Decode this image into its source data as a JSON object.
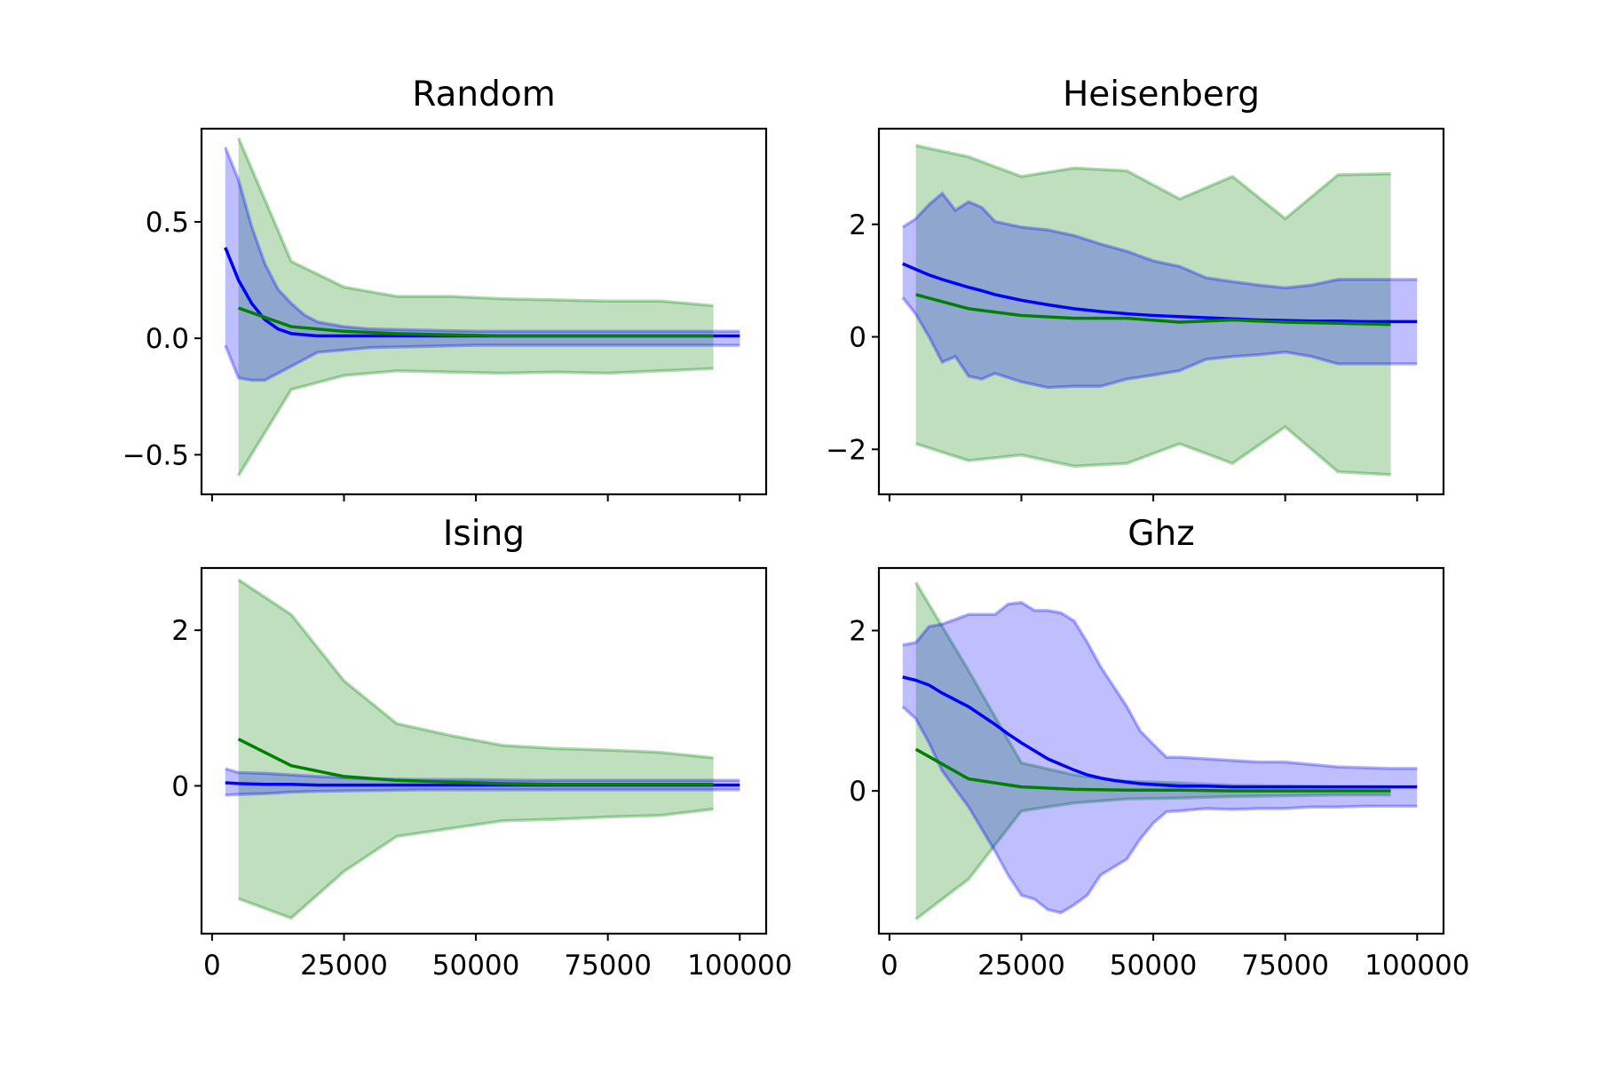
{
  "colors": {
    "blue": "#0000ff",
    "green": "#008000",
    "blue_fill": "#0000ff",
    "green_fill": "#008000"
  },
  "chart_data": [
    {
      "type": "line",
      "title": "Random",
      "xlim": [
        -2000,
        105000
      ],
      "ylim": [
        -0.67,
        0.9
      ],
      "yticks": [
        -0.5,
        0.0,
        0.5
      ],
      "yticklabels": [
        "−0.5",
        "0.0",
        "0.5"
      ],
      "xticks": [
        0,
        25000,
        50000,
        75000,
        100000
      ],
      "xticklabels": [],
      "grid": false,
      "series": [
        {
          "color": "blue",
          "x": [
            2500,
            5000,
            7500,
            10000,
            12500,
            15000,
            17500,
            20000,
            25000,
            30000,
            40000,
            50000,
            60000,
            70000,
            80000,
            90000,
            100000
          ],
          "mean": [
            0.39,
            0.25,
            0.15,
            0.08,
            0.04,
            0.02,
            0.015,
            0.01,
            0.01,
            0.01,
            0.01,
            0.01,
            0.01,
            0.01,
            0.01,
            0.01,
            0.01
          ],
          "upper": [
            0.82,
            0.68,
            0.48,
            0.32,
            0.21,
            0.15,
            0.1,
            0.07,
            0.05,
            0.04,
            0.035,
            0.03,
            0.03,
            0.03,
            0.03,
            0.03,
            0.03
          ],
          "lower": [
            -0.03,
            -0.17,
            -0.18,
            -0.18,
            -0.15,
            -0.12,
            -0.09,
            -0.06,
            -0.05,
            -0.04,
            -0.035,
            -0.03,
            -0.03,
            -0.03,
            -0.03,
            -0.03,
            -0.03
          ]
        },
        {
          "color": "green",
          "x": [
            5000,
            15000,
            25000,
            35000,
            45000,
            55000,
            65000,
            75000,
            85000,
            95000
          ],
          "mean": [
            0.13,
            0.05,
            0.03,
            0.02,
            0.015,
            0.01,
            0.01,
            0.01,
            0.01,
            0.01
          ],
          "upper": [
            0.86,
            0.33,
            0.22,
            0.18,
            0.18,
            0.17,
            0.165,
            0.16,
            0.16,
            0.14
          ],
          "lower": [
            -0.59,
            -0.22,
            -0.16,
            -0.14,
            -0.145,
            -0.15,
            -0.145,
            -0.15,
            -0.14,
            -0.13
          ]
        }
      ]
    },
    {
      "type": "line",
      "title": "Heisenberg",
      "xlim": [
        -2000,
        105000
      ],
      "ylim": [
        -2.8,
        3.7
      ],
      "yticks": [
        -2,
        0,
        2
      ],
      "yticklabels": [
        "−2",
        "0",
        "2"
      ],
      "xticks": [
        0,
        25000,
        50000,
        75000,
        100000
      ],
      "xticklabels": [],
      "grid": false,
      "series": [
        {
          "color": "blue",
          "x": [
            2500,
            5000,
            7500,
            10000,
            12500,
            15000,
            17500,
            20000,
            25000,
            30000,
            35000,
            40000,
            45000,
            50000,
            55000,
            60000,
            65000,
            70000,
            75000,
            80000,
            85000,
            90000,
            95000,
            100000
          ],
          "mean": [
            1.3,
            1.2,
            1.1,
            1.02,
            0.95,
            0.88,
            0.82,
            0.75,
            0.65,
            0.57,
            0.5,
            0.45,
            0.41,
            0.38,
            0.36,
            0.34,
            0.32,
            0.3,
            0.29,
            0.28,
            0.28,
            0.27,
            0.27,
            0.27
          ],
          "upper": [
            1.95,
            2.1,
            2.35,
            2.55,
            2.25,
            2.4,
            2.3,
            2.05,
            1.95,
            1.9,
            1.8,
            1.65,
            1.52,
            1.35,
            1.25,
            1.05,
            0.98,
            0.92,
            0.87,
            0.92,
            1.02,
            1.02,
            1.02,
            1.02
          ],
          "lower": [
            0.7,
            0.4,
            0.0,
            -0.45,
            -0.35,
            -0.7,
            -0.75,
            -0.65,
            -0.8,
            -0.9,
            -0.88,
            -0.88,
            -0.75,
            -0.68,
            -0.6,
            -0.4,
            -0.35,
            -0.32,
            -0.27,
            -0.35,
            -0.48,
            -0.48,
            -0.48,
            -0.48
          ]
        },
        {
          "color": "green",
          "x": [
            5000,
            15000,
            25000,
            35000,
            45000,
            55000,
            65000,
            75000,
            85000,
            95000
          ],
          "mean": [
            0.75,
            0.5,
            0.38,
            0.33,
            0.33,
            0.26,
            0.3,
            0.26,
            0.24,
            0.22
          ],
          "upper": [
            3.4,
            3.2,
            2.85,
            3.0,
            2.95,
            2.45,
            2.85,
            2.1,
            2.88,
            2.9
          ],
          "lower": [
            -1.9,
            -2.2,
            -2.1,
            -2.3,
            -2.25,
            -1.9,
            -2.25,
            -1.6,
            -2.4,
            -2.45
          ]
        }
      ]
    },
    {
      "type": "line",
      "title": "Ising",
      "xlim": [
        -2000,
        105000
      ],
      "ylim": [
        -1.9,
        2.8
      ],
      "yticks": [
        0,
        2
      ],
      "yticklabels": [
        "0",
        "2"
      ],
      "xticks": [
        0,
        25000,
        50000,
        75000,
        100000
      ],
      "xticklabels": [
        "0",
        "25000",
        "50000",
        "75000",
        "100000"
      ],
      "grid": false,
      "series": [
        {
          "color": "blue",
          "x": [
            2500,
            5000,
            10000,
            15000,
            20000,
            30000,
            40000,
            50000,
            60000,
            70000,
            80000,
            90000,
            100000
          ],
          "mean": [
            0.04,
            0.03,
            0.02,
            0.02,
            0.01,
            0.01,
            0.01,
            0.01,
            0.01,
            0.01,
            0.01,
            0.01,
            0.01
          ],
          "upper": [
            0.22,
            0.17,
            0.16,
            0.14,
            0.12,
            0.09,
            0.08,
            0.08,
            0.07,
            0.07,
            0.07,
            0.07,
            0.07
          ],
          "lower": [
            -0.12,
            -0.11,
            -0.1,
            -0.08,
            -0.07,
            -0.06,
            -0.05,
            -0.05,
            -0.05,
            -0.05,
            -0.05,
            -0.05,
            -0.05
          ]
        },
        {
          "color": "green",
          "x": [
            5000,
            15000,
            25000,
            35000,
            45000,
            55000,
            65000,
            75000,
            85000,
            95000
          ],
          "mean": [
            0.6,
            0.26,
            0.12,
            0.07,
            0.05,
            0.03,
            0.02,
            0.02,
            0.02,
            0.02
          ],
          "upper": [
            2.65,
            2.2,
            1.35,
            0.8,
            0.65,
            0.52,
            0.48,
            0.46,
            0.43,
            0.36
          ],
          "lower": [
            -1.45,
            -1.7,
            -1.1,
            -0.65,
            -0.55,
            -0.45,
            -0.43,
            -0.4,
            -0.38,
            -0.3
          ]
        }
      ]
    },
    {
      "type": "line",
      "title": "Ghz",
      "xlim": [
        -2000,
        105000
      ],
      "ylim": [
        -1.78,
        2.78
      ],
      "yticks": [
        0,
        2
      ],
      "yticklabels": [
        "0",
        "2"
      ],
      "xticks": [
        0,
        25000,
        50000,
        75000,
        100000
      ],
      "xticklabels": [
        "0",
        "25000",
        "50000",
        "75000",
        "100000"
      ],
      "grid": false,
      "series": [
        {
          "color": "blue",
          "x": [
            2500,
            5000,
            7500,
            10000,
            15000,
            20000,
            22500,
            25000,
            27500,
            30000,
            32500,
            35000,
            37500,
            40000,
            42500,
            45000,
            47500,
            50000,
            52500,
            55000,
            60000,
            65000,
            70000,
            75000,
            80000,
            85000,
            90000,
            95000,
            100000
          ],
          "mean": [
            1.42,
            1.38,
            1.32,
            1.22,
            1.05,
            0.83,
            0.71,
            0.6,
            0.5,
            0.4,
            0.33,
            0.26,
            0.2,
            0.16,
            0.13,
            0.11,
            0.09,
            0.08,
            0.07,
            0.06,
            0.06,
            0.05,
            0.05,
            0.05,
            0.05,
            0.05,
            0.05,
            0.05,
            0.05
          ],
          "upper": [
            1.82,
            1.85,
            2.05,
            2.08,
            2.2,
            2.2,
            2.33,
            2.35,
            2.25,
            2.25,
            2.22,
            2.12,
            1.85,
            1.55,
            1.3,
            1.05,
            0.75,
            0.58,
            0.42,
            0.42,
            0.4,
            0.38,
            0.36,
            0.36,
            0.33,
            0.3,
            0.29,
            0.28,
            0.28
          ],
          "lower": [
            1.05,
            0.9,
            0.6,
            0.25,
            -0.2,
            -0.75,
            -1.05,
            -1.3,
            -1.35,
            -1.48,
            -1.52,
            -1.42,
            -1.3,
            -1.05,
            -0.95,
            -0.85,
            -0.6,
            -0.4,
            -0.26,
            -0.25,
            -0.22,
            -0.23,
            -0.22,
            -0.22,
            -0.2,
            -0.2,
            -0.19,
            -0.19,
            -0.19
          ]
        },
        {
          "color": "green",
          "x": [
            5000,
            15000,
            25000,
            35000,
            45000,
            55000,
            65000,
            75000,
            85000,
            95000
          ],
          "mean": [
            0.52,
            0.15,
            0.05,
            0.02,
            0.01,
            0.01,
            0.0,
            0.0,
            0.0,
            0.0
          ],
          "upper": [
            2.6,
            1.5,
            0.35,
            0.2,
            0.12,
            0.1,
            0.07,
            0.06,
            0.05,
            0.05
          ],
          "lower": [
            -1.6,
            -1.1,
            -0.25,
            -0.15,
            -0.1,
            -0.09,
            -0.07,
            -0.06,
            -0.05,
            -0.05
          ]
        }
      ]
    }
  ]
}
